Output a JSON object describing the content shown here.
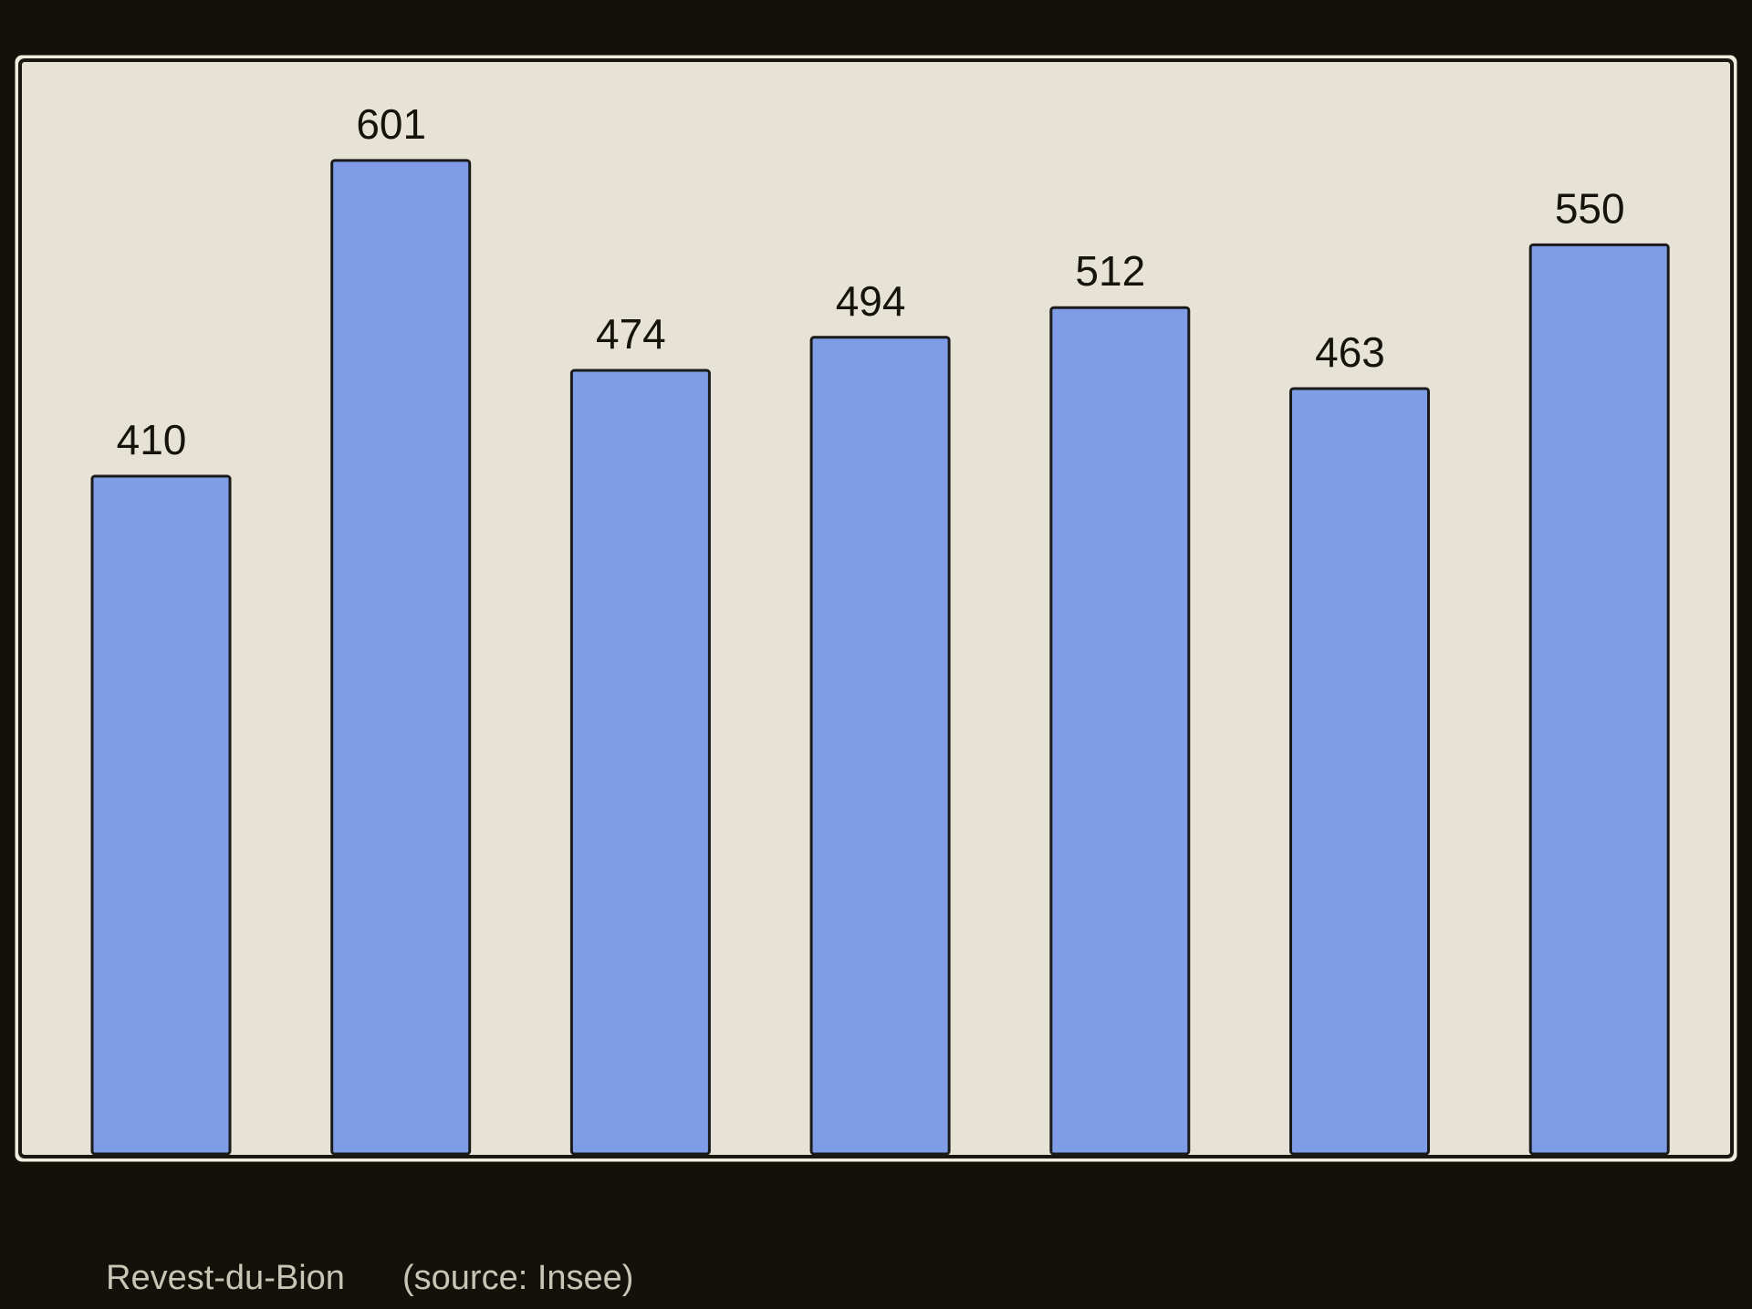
{
  "chart_data": {
    "type": "bar",
    "title": "Revest-du-Bion",
    "source": "(source: Insee)",
    "categories": [
      null,
      null,
      null,
      null,
      null,
      null,
      null
    ],
    "values": [
      410,
      601,
      474,
      494,
      512,
      463,
      550
    ],
    "color": "#7f9de6",
    "ylim": [
      0,
      661.1
    ],
    "grid": false
  }
}
